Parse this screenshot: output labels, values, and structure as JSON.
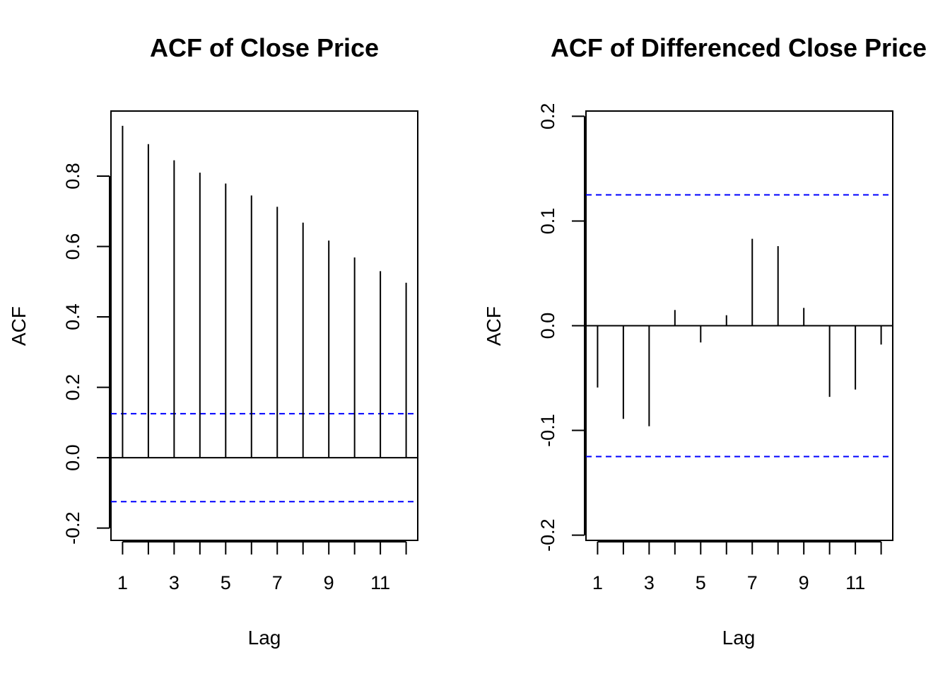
{
  "chart_data": [
    {
      "type": "bar",
      "title": "ACF of Close Price",
      "xlabel": "Lag",
      "ylabel": "ACF",
      "x": [
        1,
        2,
        3,
        4,
        5,
        6,
        7,
        8,
        9,
        10,
        11,
        12
      ],
      "values": [
        0.943,
        0.891,
        0.845,
        0.81,
        0.779,
        0.745,
        0.713,
        0.668,
        0.617,
        0.569,
        0.53,
        0.497
      ],
      "xlim": [
        0.55,
        12.45
      ],
      "ylim": [
        -0.235,
        0.985
      ],
      "x_ticks": [
        1,
        3,
        5,
        7,
        9,
        11
      ],
      "x_tick_marks": [
        1,
        2,
        3,
        4,
        5,
        6,
        7,
        8,
        9,
        10,
        11,
        12
      ],
      "y_ticks": [
        -0.2,
        0.0,
        0.2,
        0.4,
        0.6,
        0.8
      ],
      "y_tick_labels": [
        "-0.2",
        "0.0",
        "0.2",
        "0.4",
        "0.6",
        "0.8"
      ],
      "ci": 0.125,
      "ci_color": "#0000ff",
      "grid": false
    },
    {
      "type": "bar",
      "title": "ACF of Differenced Close Price",
      "xlabel": "Lag",
      "ylabel": "ACF",
      "x": [
        1,
        2,
        3,
        4,
        5,
        6,
        7,
        8,
        9,
        10,
        11,
        12
      ],
      "values": [
        -0.059,
        -0.089,
        -0.096,
        0.015,
        -0.016,
        0.01,
        0.083,
        0.076,
        0.017,
        -0.068,
        -0.061,
        -0.018
      ],
      "xlim": [
        0.55,
        12.45
      ],
      "ylim": [
        -0.205,
        0.205
      ],
      "x_ticks": [
        1,
        3,
        5,
        7,
        9,
        11
      ],
      "x_tick_marks": [
        1,
        2,
        3,
        4,
        5,
        6,
        7,
        8,
        9,
        10,
        11,
        12
      ],
      "y_ticks": [
        -0.2,
        -0.1,
        0.0,
        0.1,
        0.2
      ],
      "y_tick_labels": [
        "-0.2",
        "-0.1",
        "0.0",
        "0.1",
        "0.2"
      ],
      "ci": 0.125,
      "ci_color": "#0000ff",
      "grid": false
    }
  ]
}
